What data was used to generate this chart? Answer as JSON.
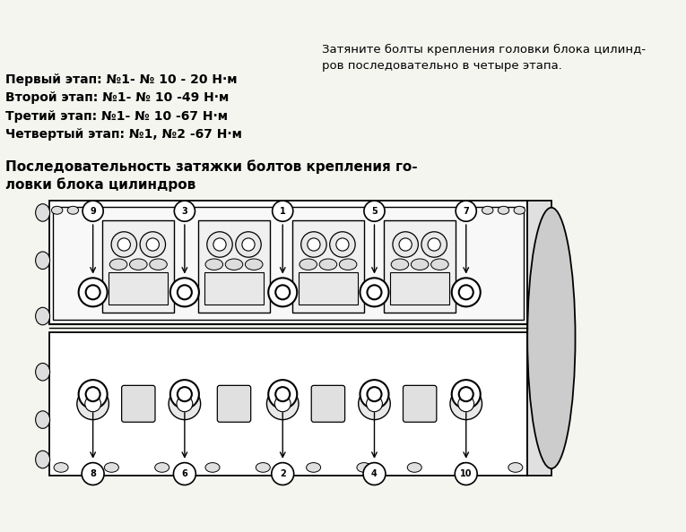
{
  "bg_color": "#f5f5f0",
  "text_color": "#000000",
  "title_line1": "    Затяните болты крепления головки блока цилинд-",
  "title_line2": "    ров последовательно в четыре этапа.",
  "step1": "Первый этап: №1- № 10 - 20 Н·м",
  "step2": "Второй этап: №1- № 10 -49 Н·м",
  "step3": "Третий этап: №1- № 10 -67 Н·м",
  "step4": "Четвертый этап: №1, №2 -67 Н·м",
  "diagram_title_line1": "Последовательность затяжки болтов крепления го-",
  "diagram_title_line2": "ловки блока цилиндров",
  "top_bolt_numbers": [
    "9",
    "3",
    "1",
    "5",
    "7"
  ],
  "bottom_bolt_numbers": [
    "8",
    "6",
    "2",
    "4",
    "10"
  ],
  "fig_width": 7.65,
  "fig_height": 5.94,
  "dpi": 100
}
